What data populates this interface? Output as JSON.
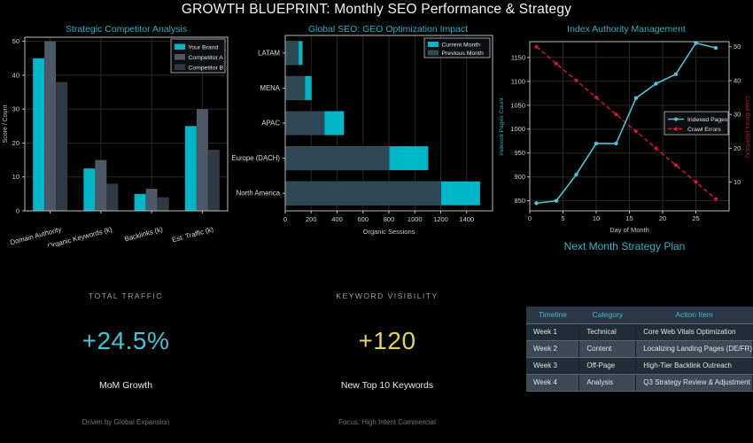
{
  "page_title": "GROWTH BLUEPRINT: Monthly SEO Performance & Strategy",
  "colors": {
    "accent_cyan": "#00b7c9",
    "line_cyan": "#4dc4d4",
    "crimson": "#dc143c",
    "competitor_a": "#4d5866",
    "competitor_b": "#303a44",
    "previous_month": "#2e4955",
    "kpi_yellow": "#ded45c"
  },
  "chart_data": [
    {
      "type": "bar",
      "title": "Strategic Competitor Analysis",
      "categories": [
        "Domain Authority",
        "Organic Keywords (k)",
        "Backlinks (k)",
        "Est. Traffic (k)"
      ],
      "series": [
        {
          "name": "Your Brand",
          "color": "#00b7c9",
          "values": [
            45,
            12.5,
            5,
            25
          ]
        },
        {
          "name": "Competitor A",
          "color": "#4d5866",
          "values": [
            50,
            15,
            6.5,
            30
          ]
        },
        {
          "name": "Competitor B",
          "color": "#303a44",
          "values": [
            38,
            8,
            4,
            18
          ]
        }
      ],
      "ylabel": "Score / Count",
      "ylim": [
        0,
        51.2
      ],
      "yticks": [
        0,
        10,
        20,
        30,
        40,
        50
      ],
      "grid": true,
      "legend_position": "top-right"
    },
    {
      "type": "bar-horizontal",
      "title": "Global SEO: GEO Optimization Impact",
      "categories": [
        "LATAM",
        "MENA",
        "APAC",
        "Europe (DACH)",
        "North America"
      ],
      "series": [
        {
          "name": "Current Month",
          "color": "#00b7c9",
          "values": [
            130,
            200,
            450,
            1100,
            1500
          ]
        },
        {
          "name": "Previous Month",
          "color": "#2e4955",
          "values": [
            100,
            150,
            300,
            800,
            1200
          ]
        }
      ],
      "xlabel": "Organic Sessions",
      "xlim": [
        0,
        1600
      ],
      "xticks": [
        0,
        200,
        400,
        600,
        800,
        1000,
        1200,
        1400
      ],
      "grid": true,
      "legend_position": "top-right"
    },
    {
      "type": "line",
      "title": "Index Authority Management",
      "x": [
        1,
        4,
        7,
        10,
        13,
        16,
        19,
        22,
        25,
        28
      ],
      "xlabel": "Day of Month",
      "xlim": [
        0,
        30
      ],
      "xticks": [
        0,
        5,
        10,
        15,
        20,
        25
      ],
      "series": [
        {
          "name": "Indexed Pages",
          "axis": "left",
          "style": "solid",
          "color": "#4dc4d4",
          "values": [
            845,
            850,
            905,
            970,
            970,
            1065,
            1095,
            1115,
            1180,
            1170
          ]
        },
        {
          "name": "Crawl Errors",
          "axis": "right",
          "style": "dashed",
          "color": "#dc143c",
          "values": [
            50,
            45,
            40,
            35,
            30,
            25,
            20,
            15,
            10,
            5
          ]
        }
      ],
      "left_axis": {
        "label": "Indexed Pages Count",
        "color": "#27b2c4",
        "lim": [
          829,
          1183
        ],
        "ticks": [
          850,
          900,
          950,
          1000,
          1050,
          1100,
          1150
        ]
      },
      "right_axis": {
        "label": "Crawl Errors (404/5XX)",
        "color": "#c02040",
        "lim": [
          1.5,
          51.5
        ],
        "ticks": [
          10,
          20,
          30,
          40,
          50
        ]
      },
      "grid": true,
      "legend_position": "center-right"
    }
  ],
  "strategy": {
    "heading": "Next Month Strategy Plan",
    "kpis": [
      {
        "label": "TOTAL TRAFFIC",
        "value": "+24.5%",
        "value_color": "#3ec6d6",
        "sub": "MoM Growth",
        "note": "Driven by Global Expansion"
      },
      {
        "label": "KEYWORD VISIBILITY",
        "value": "+120",
        "value_color": "#ded45c",
        "sub": "New Top 10 Keywords",
        "note": "Focus: High Intent Commercial"
      }
    ],
    "table": {
      "headers": [
        "Timeline",
        "Category",
        "Action Item"
      ],
      "rows": [
        [
          "Week 1",
          "Technical",
          "Core Web Vitals Optimization"
        ],
        [
          "Week 2",
          "Content",
          "Localizing Landing Pages (DE/FR)"
        ],
        [
          "Week 3",
          "Off-Page",
          "High-Tier Backlink Outreach"
        ],
        [
          "Week 4",
          "Analysis",
          "Q3 Strategy Review & Adjustment"
        ]
      ]
    }
  }
}
